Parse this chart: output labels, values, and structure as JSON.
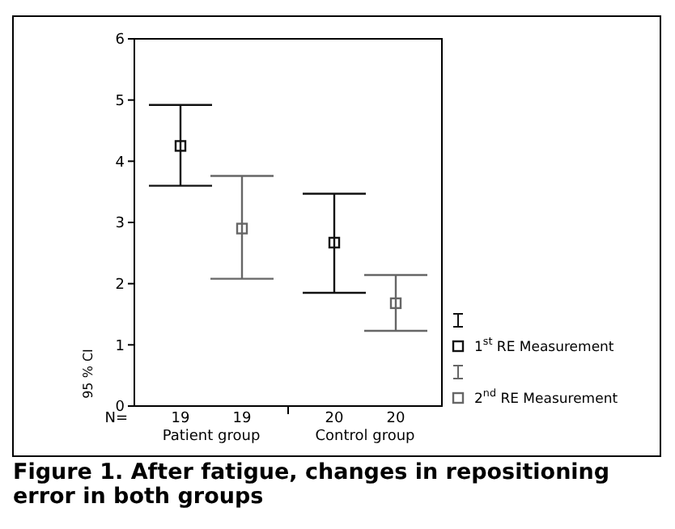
{
  "chart_data": {
    "type": "scatter",
    "title": "Figure 1. After fatigue, changes in repositioning error in both groups",
    "ylabel": "95 % CI",
    "categories": [
      "Patient group",
      "Control group"
    ],
    "series": [
      {
        "name": "1$^{st}$ RE Measurement",
        "color": "#111111",
        "values": [
          4.25,
          2.67
        ],
        "errors": [
          [
            3.6,
            4.92
          ],
          [
            1.85,
            3.47
          ]
        ]
      },
      {
        "name": "2$^{nd}$ RE Measurement",
        "color": "#666666",
        "values": [
          2.9,
          1.68
        ],
        "errors": [
          [
            2.08,
            3.76
          ],
          [
            1.23,
            2.14
          ]
        ]
      }
    ],
    "annotations": [
      "N=",
      "19",
      "19",
      "20",
      "20"
    ],
    "ylim": [
      0,
      6
    ],
    "yticks": [
      0,
      1,
      2,
      3,
      4,
      5,
      6
    ],
    "marker": "square",
    "legend": "right",
    "grid": false
  }
}
